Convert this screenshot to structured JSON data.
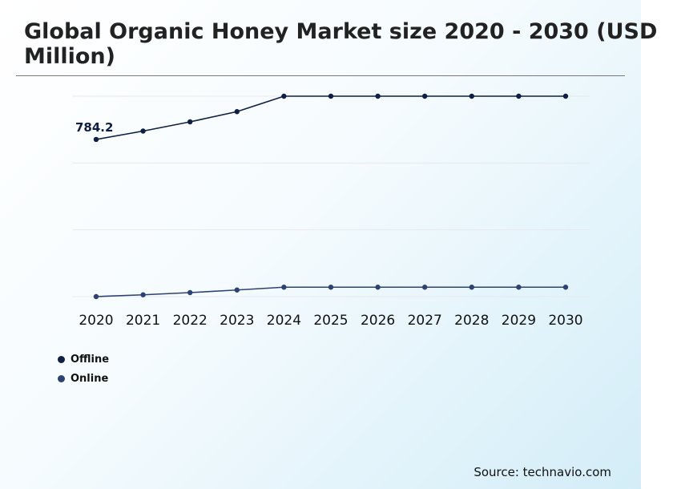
{
  "title": "Global Organic Honey Market size 2020 - 2030 (USD\nMillion)",
  "source": "Source: technavio.com",
  "colors": {
    "offline": "#0f1f44",
    "online": "#2e4272",
    "grid": "#e6e9ee",
    "rule": "#7a7a7a"
  },
  "chart_data": {
    "type": "line",
    "title": "Global Organic Honey Market size 2020 - 2030 (USD Million)",
    "xlabel": "",
    "ylabel": "",
    "grid": true,
    "legend_position": "bottom-left",
    "x": [
      "2020",
      "2021",
      "2022",
      "2023",
      "2024",
      "2025",
      "2026",
      "2027",
      "2028",
      "2029",
      "2030"
    ],
    "ylim": [
      0,
      1200
    ],
    "series": [
      {
        "name": "Offline",
        "values": [
          784.2,
          826,
          872,
          923,
          1000,
          1000,
          1000,
          1000,
          1000,
          1000,
          1000
        ]
      },
      {
        "name": "Online",
        "values": [
          0,
          9,
          20,
          33,
          47,
          47,
          47,
          47,
          47,
          47,
          47
        ]
      }
    ],
    "annotations": [
      {
        "series": "Offline",
        "x": "2020",
        "text": "784.2"
      }
    ]
  }
}
